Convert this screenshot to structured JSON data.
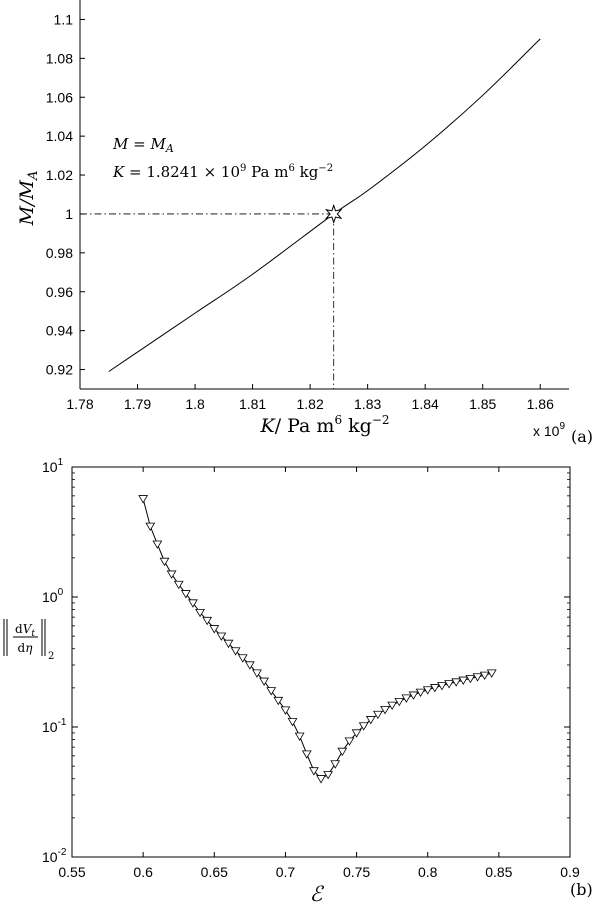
{
  "chart_data": [
    {
      "type": "line",
      "panel_label": "(a)",
      "xlabel": "K/ Pa m⁶ kg⁻²",
      "ylabel": "M/M_A",
      "x_multiplier": "x 10⁹",
      "xlim": [
        1.78,
        1.865
      ],
      "ylim": [
        0.91,
        1.11
      ],
      "x_ticks": [
        1.78,
        1.79,
        1.8,
        1.81,
        1.82,
        1.83,
        1.84,
        1.85,
        1.86
      ],
      "x_tick_labels": [
        "1.78",
        "1.79",
        "1.8",
        "1.81",
        "1.82",
        "1.83",
        "1.84",
        "1.85",
        "1.86"
      ],
      "y_ticks": [
        0.92,
        0.94,
        0.96,
        0.98,
        1.0,
        1.02,
        1.04,
        1.06,
        1.08,
        1.1
      ],
      "y_tick_labels": [
        "0.92",
        "0.94",
        "0.96",
        "0.98",
        "1",
        "1.02",
        "1.04",
        "1.06",
        "1.08",
        "1.1"
      ],
      "series": [
        {
          "x": [
            1.785,
            1.79,
            1.8,
            1.81,
            1.8241,
            1.83,
            1.84,
            1.85,
            1.86
          ],
          "y": [
            0.919,
            0.929,
            0.949,
            0.969,
            1.0,
            1.012,
            1.035,
            1.061,
            1.09
          ]
        }
      ],
      "marker": {
        "x": 1.8241,
        "y": 1.0,
        "shape": "star"
      },
      "guide_lines": "dash-dot",
      "annotations": [
        "M = M_A",
        "K = 1.8241 × 10⁹ Pa m⁶ kg⁻²"
      ]
    },
    {
      "type": "line",
      "panel_label": "(b)",
      "xlabel": "ℰ",
      "ylabel": "‖dV_t/dη‖₂",
      "y_scale": "log",
      "xlim": [
        0.55,
        0.9
      ],
      "ylim": [
        0.01,
        10
      ],
      "x_ticks": [
        0.55,
        0.6,
        0.65,
        0.7,
        0.75,
        0.8,
        0.85,
        0.9
      ],
      "x_tick_labels": [
        "0.55",
        "0.6",
        "0.65",
        "0.7",
        "0.75",
        "0.8",
        "0.85",
        "0.9"
      ],
      "y_ticks": [
        0.01,
        0.1,
        1,
        10
      ],
      "y_tick_labels": [
        {
          "base": "10",
          "exp": "-2"
        },
        {
          "base": "10",
          "exp": "-1"
        },
        {
          "base": "10",
          "exp": "0"
        },
        {
          "base": "10",
          "exp": "1"
        }
      ],
      "marker": "triangle-down",
      "series": [
        {
          "x": [
            0.6,
            0.605,
            0.61,
            0.615,
            0.62,
            0.625,
            0.63,
            0.635,
            0.64,
            0.645,
            0.65,
            0.655,
            0.66,
            0.665,
            0.67,
            0.675,
            0.68,
            0.685,
            0.69,
            0.695,
            0.7,
            0.705,
            0.71,
            0.715,
            0.72,
            0.725,
            0.73,
            0.735,
            0.74,
            0.745,
            0.75,
            0.755,
            0.76,
            0.765,
            0.77,
            0.775,
            0.78,
            0.785,
            0.79,
            0.795,
            0.8,
            0.805,
            0.81,
            0.815,
            0.82,
            0.825,
            0.83,
            0.835,
            0.84,
            0.845
          ],
          "y": [
            5.7,
            3.5,
            2.55,
            1.88,
            1.5,
            1.25,
            1.06,
            0.9,
            0.76,
            0.66,
            0.57,
            0.5,
            0.44,
            0.385,
            0.34,
            0.3,
            0.26,
            0.225,
            0.19,
            0.16,
            0.135,
            0.11,
            0.085,
            0.062,
            0.046,
            0.04,
            0.043,
            0.052,
            0.065,
            0.078,
            0.09,
            0.102,
            0.114,
            0.125,
            0.136,
            0.147,
            0.157,
            0.167,
            0.176,
            0.185,
            0.193,
            0.201,
            0.208,
            0.215,
            0.222,
            0.229,
            0.236,
            0.243,
            0.25,
            0.26
          ]
        }
      ]
    }
  ]
}
